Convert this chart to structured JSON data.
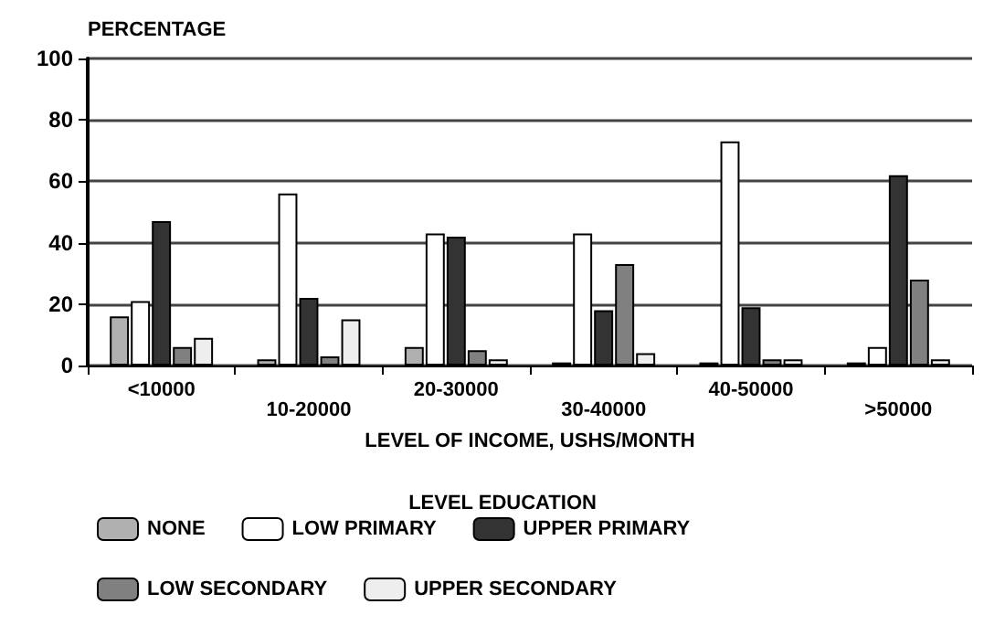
{
  "chart_data": {
    "type": "bar",
    "ylabel": "PERCENTAGE",
    "xlabel": "LEVEL OF INCOME, USHS/MONTH",
    "legend_title": "LEVEL EDUCATION",
    "categories": [
      "<10000",
      "10-20000",
      "20-30000",
      "30-40000",
      "40-50000",
      ">50000"
    ],
    "series": [
      {
        "name": "NONE",
        "color": "#b0b0b0",
        "values": [
          16,
          2,
          6,
          1,
          1,
          1
        ]
      },
      {
        "name": "LOW PRIMARY",
        "color": "#ffffff",
        "values": [
          21,
          56,
          43,
          43,
          73,
          6
        ]
      },
      {
        "name": "UPPER PRIMARY",
        "color": "#333333",
        "values": [
          47,
          22,
          42,
          18,
          19,
          62
        ]
      },
      {
        "name": "LOW SECONDARY",
        "color": "#808080",
        "values": [
          6,
          3,
          5,
          33,
          2,
          28
        ]
      },
      {
        "name": "UPPER SECONDARY",
        "color": "#eeeeee",
        "values": [
          9,
          15,
          2,
          4,
          2,
          2
        ]
      }
    ],
    "ylim": [
      0,
      100
    ],
    "yticks": [
      0,
      20,
      40,
      60,
      80,
      100
    ],
    "grid": "y",
    "legend": "bottom"
  }
}
